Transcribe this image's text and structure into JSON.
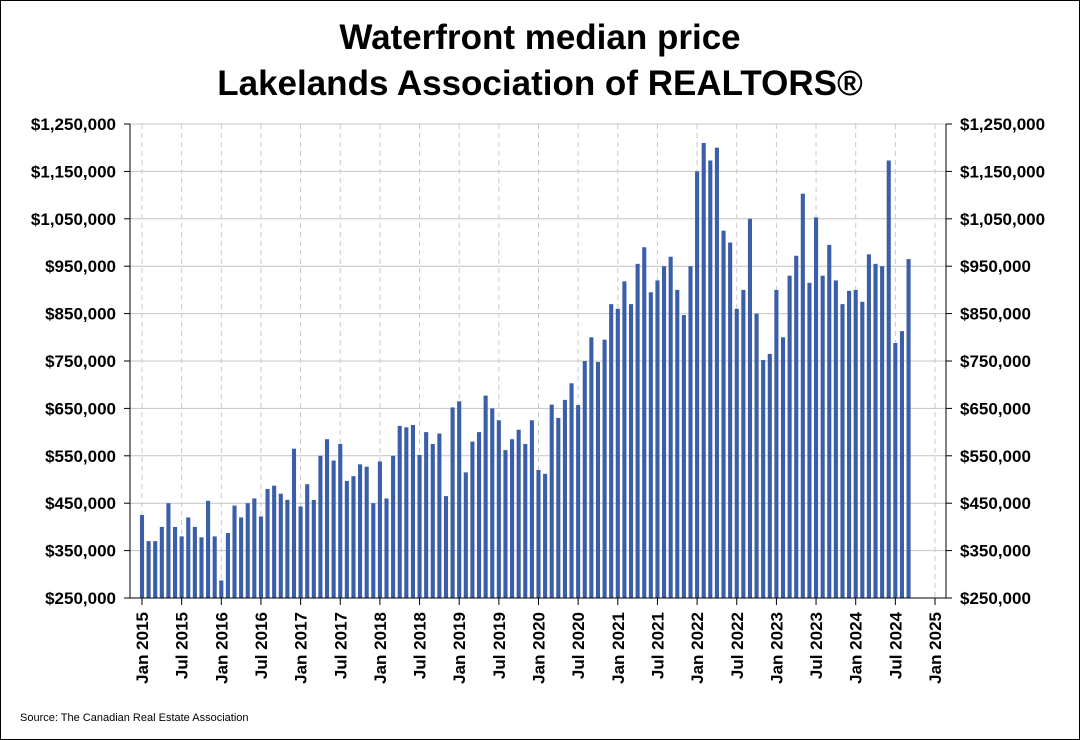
{
  "chart_data": {
    "type": "bar",
    "title": "Waterfront median price",
    "subtitle": "Lakelands Association of REALTORS®",
    "source": "Source: The Canadian Real Estate Association",
    "bar_color": "#3b5ea8",
    "ylim": [
      250000,
      1250000
    ],
    "grid": true,
    "y_ticks": [
      "$250,000",
      "$350,000",
      "$450,000",
      "$550,000",
      "$650,000",
      "$750,000",
      "$850,000",
      "$950,000",
      "$1,050,000",
      "$1,150,000",
      "$1,250,000"
    ],
    "x_ticks": [
      "Jan 2015",
      "Jul 2015",
      "Jan 2016",
      "Jul 2016",
      "Jan 2017",
      "Jul 2017",
      "Jan 2018",
      "Jul 2018",
      "Jan 2019",
      "Jul 2019",
      "Jan 2020",
      "Jul 2020",
      "Jan 2021",
      "Jul 2021",
      "Jan 2022",
      "Jul 2022",
      "Jan 2023",
      "Jul 2023",
      "Jan 2024",
      "Jul 2024",
      "Jan 2025"
    ],
    "x_start": "Jan 2015",
    "x_end": "Jan 2025",
    "values": [
      425000,
      370000,
      370000,
      400000,
      450000,
      400000,
      380000,
      420000,
      400000,
      378000,
      455000,
      380000,
      287000,
      387000,
      445000,
      420000,
      450000,
      460000,
      422000,
      480000,
      487000,
      470000,
      457000,
      565000,
      443000,
      490000,
      457000,
      550000,
      585000,
      540000,
      575000,
      497000,
      507000,
      532000,
      527000,
      450000,
      538000,
      460000,
      550000,
      613000,
      610000,
      615000,
      552000,
      600000,
      575000,
      597000,
      465000,
      652000,
      665000,
      515000,
      580000,
      600000,
      677000,
      650000,
      625000,
      562000,
      585000,
      605000,
      575000,
      625000,
      520000,
      512000,
      658000,
      630000,
      668000,
      703000,
      657000,
      750000,
      800000,
      748000,
      795000,
      870000,
      860000,
      918000,
      870000,
      955000,
      990000,
      895000,
      920000,
      950000,
      970000,
      900000,
      847000,
      950000,
      1150000,
      1210000,
      1173000,
      1200000,
      1025000,
      1000000,
      860000,
      900000,
      1050000,
      850000,
      752000,
      765000,
      900000,
      800000,
      930000,
      972000,
      1103000,
      915000,
      1053000,
      930000,
      995000,
      920000,
      870000,
      898000,
      900000,
      875000,
      975000,
      955000,
      950000,
      1173000,
      788000,
      813000,
      965000
    ]
  }
}
